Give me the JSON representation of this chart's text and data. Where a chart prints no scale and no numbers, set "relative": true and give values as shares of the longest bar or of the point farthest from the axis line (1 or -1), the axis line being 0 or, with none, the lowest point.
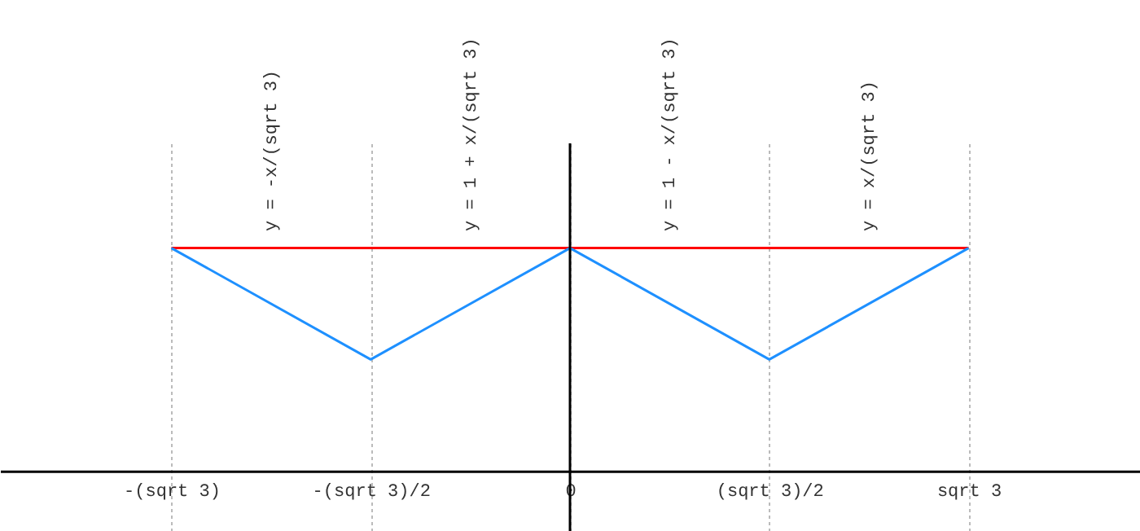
{
  "chart_data": {
    "type": "line",
    "categories": [
      "-(sqrt 3)",
      "-(sqrt 3)/2",
      "0",
      "(sqrt 3)/2",
      "sqrt 3"
    ],
    "series": [
      {
        "color": "#ff0000",
        "values": [
          1,
          1,
          1,
          1,
          1
        ]
      },
      {
        "color": "#1e90ff",
        "values": [
          1,
          0.5,
          1,
          0.5,
          1
        ]
      }
    ],
    "relative": true,
    "grid": "x",
    "ref_lines": [
      {
        "axis": "x",
        "value": "0",
        "color": "#000000"
      }
    ],
    "annotations": [
      "y = -x/(sqrt 3)",
      "y = 1 + x/(sqrt 3)",
      "y = 1 - x/(sqrt 3)",
      "y = x/(sqrt 3)"
    ]
  }
}
